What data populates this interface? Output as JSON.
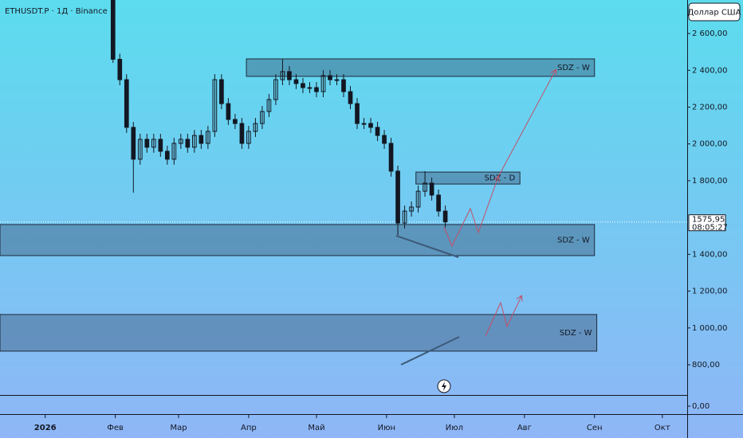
{
  "chart_data": {
    "type": "candlestick",
    "title": "ETHUSDT.P · 1Д · Binance",
    "currency": "Доллар США",
    "color": "#131722",
    "x": [
      30,
      33,
      36,
      39,
      42,
      45,
      48,
      51,
      54,
      57,
      60,
      63,
      66,
      69,
      72,
      75,
      78,
      81,
      84,
      87,
      90,
      93,
      96,
      99,
      102,
      105,
      108,
      111,
      114,
      117,
      120,
      123,
      126,
      129,
      132,
      135,
      138,
      141,
      144,
      147,
      150,
      153,
      156,
      159,
      162,
      165,
      168,
      171,
      174,
      177
    ],
    "open": [
      2780,
      2460,
      2349,
      2090,
      1917,
      2025,
      1982,
      2025,
      1960,
      1917,
      2003,
      2025,
      1982,
      2046,
      2003,
      2068,
      2349,
      2219,
      2133,
      2111,
      2003,
      2068,
      2111,
      2176,
      2241,
      2349,
      2393,
      2349,
      2328,
      2306,
      2306,
      2284,
      2371,
      2349,
      2349,
      2284,
      2219,
      2111,
      2111,
      2090,
      2046,
      2003,
      1852,
      1570,
      1635,
      1657,
      1743,
      1787,
      1722,
      1635
    ],
    "high": [
      2790,
      2490,
      2379,
      2120,
      2055,
      2055,
      2055,
      2055,
      1990,
      2033,
      2055,
      2055,
      2076,
      2076,
      2098,
      2379,
      2379,
      2249,
      2163,
      2141,
      2098,
      2141,
      2206,
      2271,
      2379,
      2460,
      2423,
      2379,
      2358,
      2336,
      2336,
      2401,
      2401,
      2379,
      2379,
      2314,
      2249,
      2141,
      2141,
      2120,
      2076,
      2033,
      1882,
      1665,
      1687,
      1773,
      1852,
      1817,
      1752,
      1665
    ],
    "low": [
      2440,
      2319,
      2060,
      1735,
      1887,
      1952,
      1952,
      1930,
      1887,
      1887,
      1973,
      1952,
      1952,
      1973,
      1973,
      2038,
      2189,
      2103,
      2081,
      1973,
      1973,
      2038,
      2081,
      2146,
      2211,
      2319,
      2319,
      2298,
      2276,
      2276,
      2254,
      2254,
      2319,
      2319,
      2254,
      2189,
      2081,
      2081,
      2060,
      2016,
      1973,
      1822,
      1505,
      1540,
      1605,
      1627,
      1713,
      1692,
      1605,
      1546
    ],
    "close": [
      2460,
      2349,
      2090,
      1917,
      2025,
      1982,
      2025,
      1960,
      1917,
      2003,
      2025,
      1982,
      2046,
      2003,
      2068,
      2349,
      2219,
      2133,
      2111,
      2003,
      2068,
      2111,
      2176,
      2241,
      2349,
      2393,
      2349,
      2328,
      2306,
      2306,
      2284,
      2371,
      2349,
      2349,
      2284,
      2219,
      2111,
      2111,
      2090,
      2046,
      2003,
      1852,
      1570,
      1635,
      1657,
      1743,
      1787,
      1722,
      1635,
      1576
    ],
    "xlim": [
      -20,
      284
    ],
    "xticks": [
      {
        "value": 0,
        "label": "2026"
      },
      {
        "value": 31,
        "label": "Фев"
      },
      {
        "value": 59,
        "label": "Мар"
      },
      {
        "value": 90,
        "label": "Апр"
      },
      {
        "value": 120,
        "label": "Май"
      },
      {
        "value": 151,
        "label": "Июн"
      },
      {
        "value": 181,
        "label": "Июл"
      },
      {
        "value": 212,
        "label": "Авг"
      },
      {
        "value": 243,
        "label": "Сен"
      },
      {
        "value": 273,
        "label": "Окт"
      }
    ],
    "ylim": [
      640,
      2782
    ],
    "yticks": [
      {
        "value": 800,
        "label": "800,00"
      },
      {
        "value": 1000,
        "label": "1 000,00"
      },
      {
        "value": 1200,
        "label": "1 200,00"
      },
      {
        "value": 1400,
        "label": "1 400,00"
      },
      {
        "value": 1800,
        "label": "1 800,00"
      },
      {
        "value": 2000,
        "label": "2 000,00"
      },
      {
        "value": 2200,
        "label": "2 200,00"
      },
      {
        "value": 2400,
        "label": "2 400,00"
      },
      {
        "value": 2600,
        "label": "2 600,00"
      }
    ],
    "last_price": {
      "value": 1575.95,
      "label": "1575,95"
    },
    "countdown": "08:05:27",
    "zones": [
      {
        "label": "SDZ - W",
        "top": 2462,
        "bottom": 2367,
        "start": 89,
        "end": 243
      },
      {
        "label": "SDZ - D",
        "top": 1847,
        "bottom": 1782,
        "start": 164,
        "end": 210
      },
      {
        "label": "SDZ - W",
        "top": 1562,
        "bottom": 1393,
        "start": -20,
        "end": 243
      },
      {
        "label": "SDZ - W",
        "top": 1073,
        "bottom": 874,
        "start": -20,
        "end": 244
      }
    ],
    "lower_pane": {
      "yticks": [
        {
          "value": 0,
          "label": "0,00"
        }
      ]
    }
  }
}
